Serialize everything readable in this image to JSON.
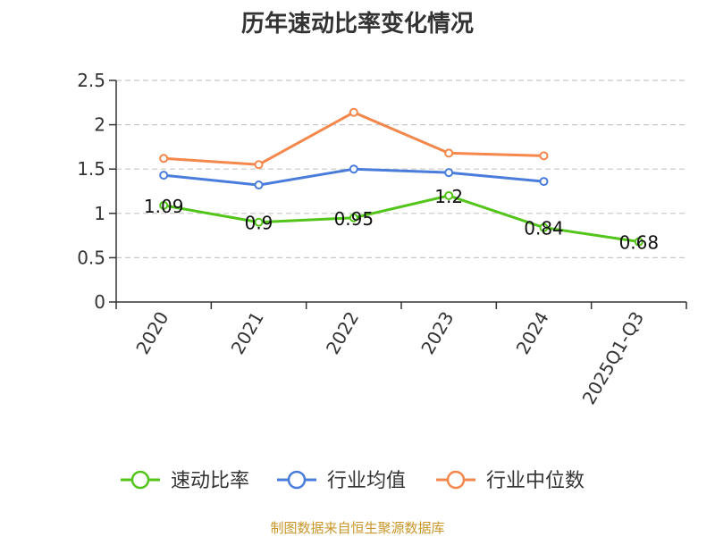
{
  "chart_data": {
    "type": "line",
    "title": "历年速动比率变化情况",
    "categories": [
      "2020",
      "2021",
      "2022",
      "2023",
      "2024",
      "2025Q1-Q3"
    ],
    "series": [
      {
        "name": "速动比率",
        "color": "#52c41a",
        "values": [
          1.09,
          0.9,
          0.95,
          1.2,
          0.84,
          0.68
        ],
        "labels": [
          "1.09",
          "0.9",
          "0.95",
          "1.2",
          "0.84",
          "0.68"
        ]
      },
      {
        "name": "行业均值",
        "color": "#4a7ddb",
        "values": [
          1.43,
          1.32,
          1.5,
          1.46,
          1.36,
          null
        ]
      },
      {
        "name": "行业中位数",
        "color": "#f4874b",
        "values": [
          1.62,
          1.55,
          2.14,
          1.68,
          1.65,
          null
        ]
      }
    ],
    "ylim": [
      0,
      2.5
    ],
    "yticks": [
      "0",
      "0.5",
      "1",
      "1.5",
      "2",
      "2.5"
    ],
    "grid": true,
    "legend_position": "bottom",
    "xlabel": "",
    "ylabel": ""
  },
  "source_note": "制图数据来自恒生聚源数据库"
}
